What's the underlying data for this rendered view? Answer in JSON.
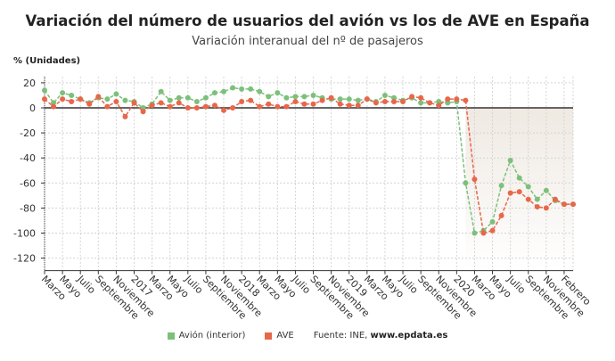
{
  "title": "Variación del número de usuarios del avión vs los de AVE en España",
  "subtitle": "Variación interanual del nº de pasajeros",
  "source_prefix": "Fuente: INE, ",
  "source_site": "www.epdata.es",
  "chart_data": {
    "type": "line",
    "ylabel": "% (Unidades)",
    "ylim": [
      -130,
      25
    ],
    "yticks": [
      20,
      0,
      -20,
      -40,
      -60,
      -80,
      -100,
      -120
    ],
    "grid": true,
    "legend_placement": "bottom",
    "x_start": "2016-03",
    "x_end": "2021-02",
    "xtick_labels": [
      "Marzo",
      "Mayo",
      "Julio",
      "Septiembre",
      "Noviembre",
      "2017",
      "Marzo",
      "Mayo",
      "Julio",
      "Septiembre",
      "Noviembre",
      "2018",
      "Marzo",
      "Mayo",
      "Julio",
      "Septiembre",
      "Noviembre",
      "2019",
      "Marzo",
      "Mayo",
      "Julio",
      "Septiembre",
      "Noviembre",
      "2020",
      "Marzo",
      "Mayo",
      "Julio",
      "Septiembre",
      "Noviembre",
      "Febrero"
    ],
    "shaded_region": {
      "from": "2020-02",
      "to": "2021-02",
      "color": "#efe9e2"
    },
    "series": [
      {
        "name": "Avión (interior)",
        "color": "#7cc07b",
        "values": [
          14,
          4,
          12,
          10,
          7,
          4,
          8,
          7,
          11,
          6,
          5,
          0,
          3,
          13,
          6,
          8,
          8,
          5,
          8,
          12,
          13,
          16,
          15,
          15,
          13,
          9,
          12,
          8,
          9,
          9,
          10,
          8,
          7,
          7,
          7,
          6,
          7,
          5,
          10,
          8,
          6,
          8,
          4,
          4,
          5,
          4,
          5,
          -60,
          -100,
          -98,
          -91,
          -62,
          -42,
          -56,
          -63,
          -73,
          -66,
          -74,
          -77,
          -77
        ]
      },
      {
        "name": "AVE",
        "color": "#e8674a",
        "values": [
          7,
          1,
          7,
          5,
          7,
          3,
          9,
          1,
          5,
          -7,
          4,
          -3,
          2,
          4,
          1,
          4,
          0,
          0,
          1,
          2,
          -2,
          0,
          5,
          6,
          1,
          3,
          1,
          1,
          5,
          3,
          3,
          6,
          8,
          3,
          2,
          2,
          7,
          4,
          5,
          5,
          5,
          9,
          8,
          4,
          2,
          7,
          7,
          6,
          -57,
          -100,
          -98,
          -86,
          -68,
          -67,
          -73,
          -79,
          -80,
          -73,
          -77,
          -77
        ]
      }
    ]
  }
}
